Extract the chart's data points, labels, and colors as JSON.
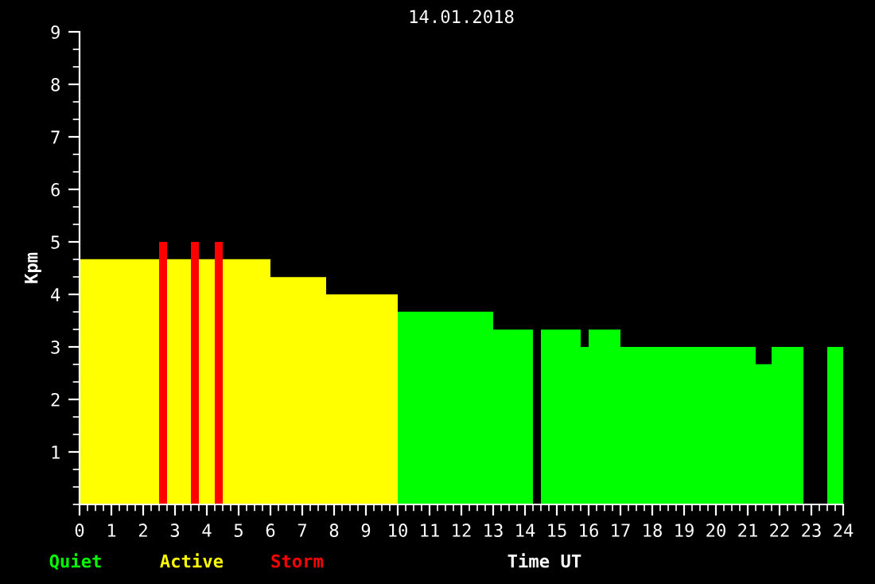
{
  "chart_data": {
    "type": "histogram",
    "title": "14.01.2018",
    "xlabel": "Time UT",
    "ylabel": "Kpm",
    "bins": [
      0,
      2.5,
      2.75,
      3.5,
      3.75,
      4.25,
      4.5,
      6,
      7.75,
      10,
      13,
      14.25,
      14.5,
      15.75,
      16,
      17,
      21.25,
      21.75,
      22.75,
      23.5,
      24
    ],
    "series": [
      {
        "name": "Quiet",
        "color": "#00ff00",
        "values": [
          null,
          null,
          null,
          null,
          null,
          null,
          null,
          null,
          null,
          3.67,
          3.33,
          null,
          3.33,
          3,
          3.33,
          3,
          2.67,
          3,
          null,
          3
        ]
      },
      {
        "name": "Active",
        "color": "#ffff00",
        "values": [
          4.67,
          null,
          4.67,
          null,
          4.67,
          null,
          4.67,
          4.33,
          4,
          null,
          null,
          null,
          null,
          null,
          null,
          null,
          null,
          null,
          null,
          null
        ]
      },
      {
        "name": "Storm",
        "color": "#ff0000",
        "values": [
          null,
          5,
          null,
          5,
          null,
          5,
          null,
          null,
          null,
          null,
          null,
          null,
          null,
          null,
          null,
          null,
          null,
          null,
          null,
          null
        ]
      }
    ],
    "xlim": [
      0,
      24
    ],
    "xticks": [
      0,
      1,
      2,
      3,
      4,
      5,
      6,
      7,
      8,
      9,
      10,
      11,
      12,
      13,
      14,
      15,
      16,
      17,
      18,
      19,
      20,
      21,
      22,
      23,
      24
    ],
    "ylim": [
      0,
      9
    ],
    "yticks": [
      1,
      2,
      3,
      4,
      5,
      6,
      7,
      8,
      9
    ],
    "legend": "bottom left",
    "grid": false
  }
}
